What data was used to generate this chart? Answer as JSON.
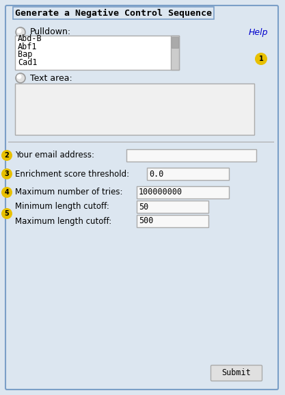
{
  "title": "Generate a Negative Control Sequence",
  "bg_color": "#dce6f0",
  "panel_bg": "#dce6f0",
  "box_bg": "#f0f0f0",
  "white_box_bg": "#f5f5f5",
  "border_color": "#aaaaaa",
  "title_bg": "#dce6f0",
  "title_border": "#7b9fc7",
  "help_color": "#0000cc",
  "radio_color": "#c8c8c8",
  "text_color": "#000000",
  "circle_badge_color": "#e8c000",
  "circle_badge_text": "#000000",
  "list_items": [
    "Abd-B",
    "Abf1",
    "Bap",
    "Cad1"
  ],
  "fields": [
    {
      "label": "Your email address:",
      "value": "",
      "badge": "2"
    },
    {
      "label": "Enrichment score threshold:",
      "value": "0.0",
      "badge": "3"
    },
    {
      "label": "Maximum number of tries:",
      "value": "100000000",
      "badge": "4"
    },
    {
      "label": "Minimum length cutoff:",
      "value": "50",
      "badge": "5"
    },
    {
      "label": "Maximum length cutoff:",
      "value": "500",
      "badge": "5"
    }
  ],
  "submit_label": "Submit"
}
